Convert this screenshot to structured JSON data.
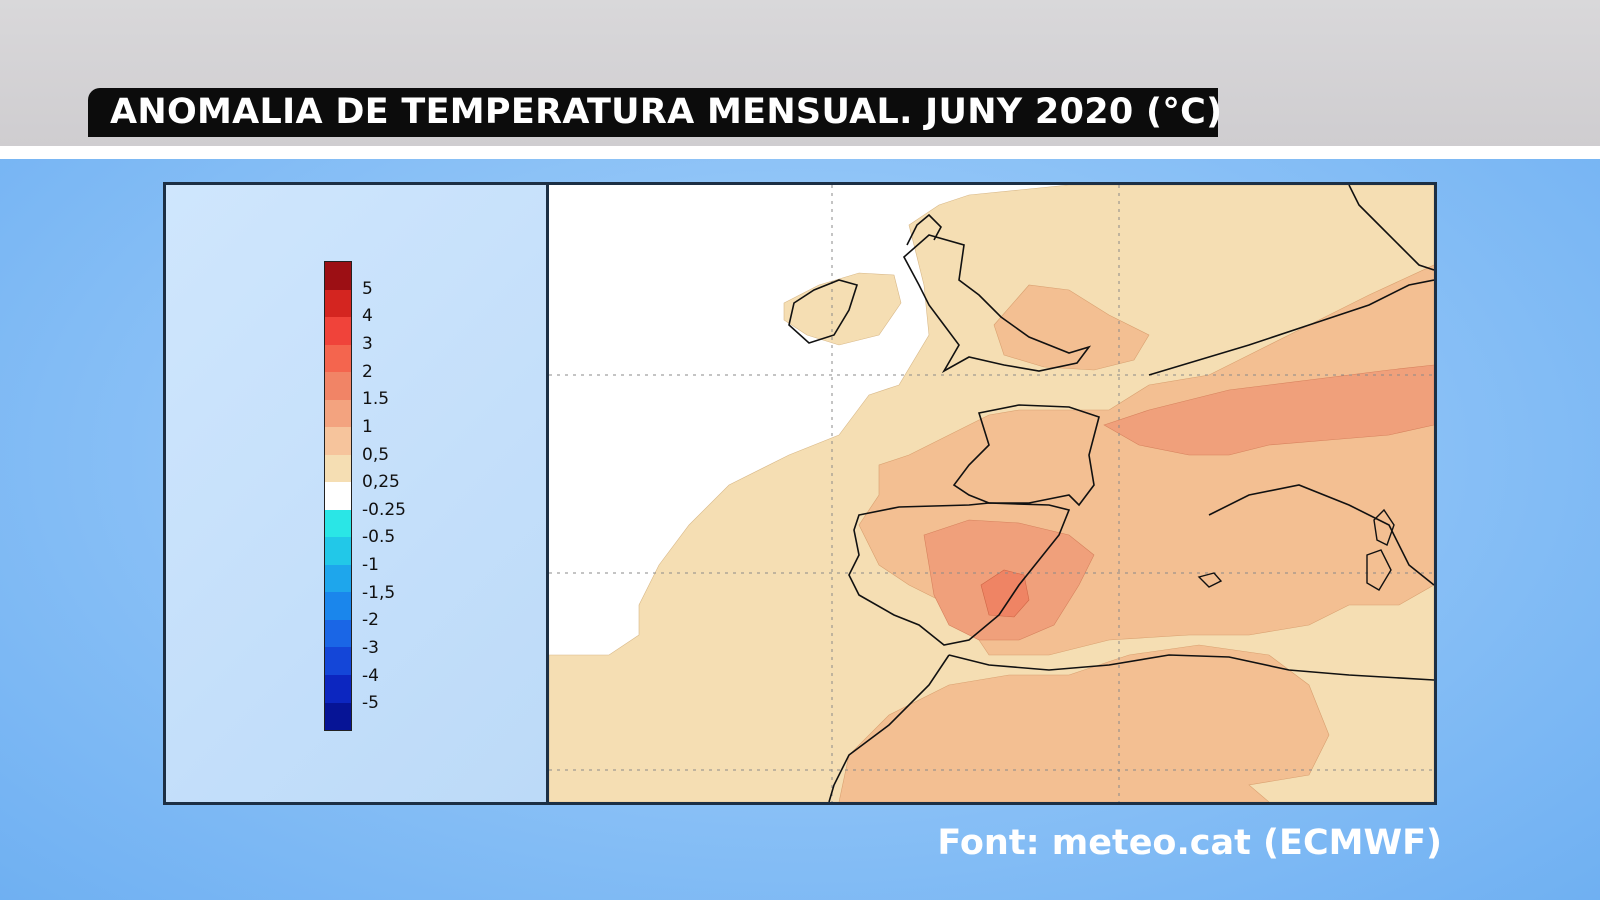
{
  "title": "ANOMALIA DE TEMPERATURA MENSUAL. JUNY 2020 (°C)",
  "source": "Font: meteo.cat (ECMWF)",
  "legend": {
    "colors": [
      "#9c0f14",
      "#d42520",
      "#f0433a",
      "#f4654e",
      "#f18466",
      "#f3a37f",
      "#f6c49c",
      "#f5deb3",
      "#ffffff",
      "#2ae6e6",
      "#22c8e8",
      "#1ea6ec",
      "#1a86ec",
      "#1a66e6",
      "#1446d8",
      "#0c26c0",
      "#061496"
    ],
    "labels": [
      "5",
      "4",
      "3",
      "2",
      "1.5",
      "1",
      "0,5",
      "0,25",
      "-0.25",
      "-0.5",
      "-1",
      "-1,5",
      "-2",
      "-3",
      "-4",
      "-5"
    ]
  },
  "map": {
    "region": "Western Europe and North Africa",
    "colors": {
      "ocean_neutral": "#ffffff",
      "anomaly_0_25_0_5": "#f5deb3",
      "anomaly_0_5_1": "#f3bf92",
      "anomaly_1_1_5": "#f0a07b",
      "anomaly_1_5_2": "#ef8464",
      "coastline": "#111111",
      "gridline": "#888888"
    }
  }
}
